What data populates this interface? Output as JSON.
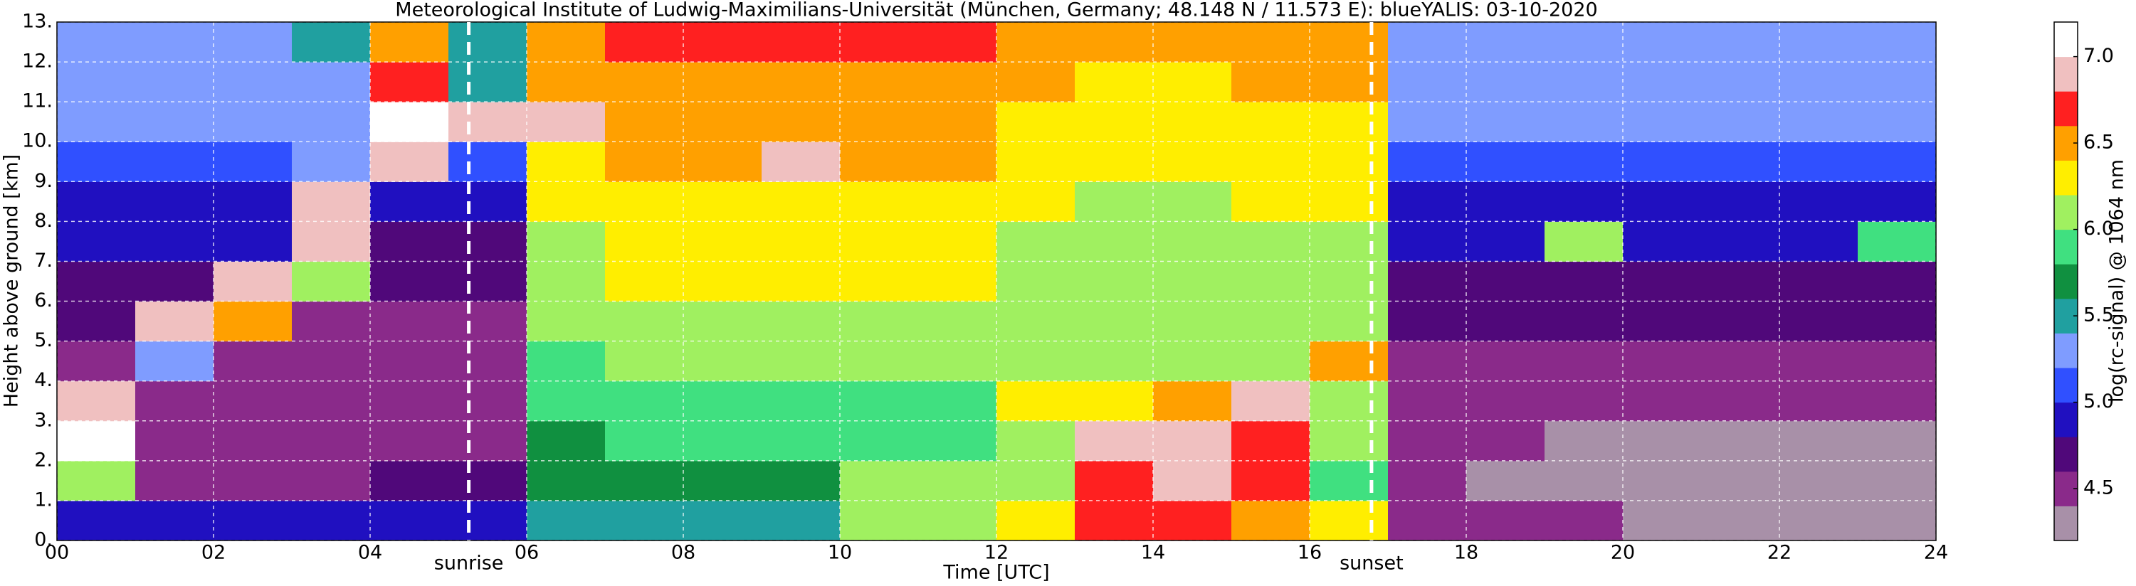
{
  "chart_data": {
    "type": "heatmap",
    "title": "Meteorological Institute of Ludwig-Maximilians-Universität (München, Germany; 48.148 N / 11.573 E):    blueYALIS: 03-10-2020",
    "x_label": "Time [UTC]",
    "y_label": "Height above ground [km]",
    "x_bins": [
      0,
      1,
      2,
      3,
      4,
      5,
      6,
      7,
      8,
      9,
      10,
      11,
      12,
      13,
      14,
      15,
      16,
      17,
      18,
      19,
      20,
      21,
      22,
      23,
      24
    ],
    "y_bins": [
      0,
      1,
      2,
      3,
      4,
      5,
      6,
      7,
      8,
      9,
      10,
      11,
      12,
      13
    ],
    "z": [
      [
        4.9,
        4.9,
        4.8,
        4.8,
        4.8,
        4.8,
        5.4,
        5.5,
        5.5,
        5.4,
        6.0,
        6.0,
        6.3,
        6.6,
        6.6,
        6.5,
        6.2,
        4.4,
        4.4,
        4.4,
        4.3,
        4.3,
        4.3,
        4.3
      ],
      [
        6.0,
        4.5,
        4.5,
        4.5,
        4.6,
        4.6,
        5.6,
        5.7,
        5.7,
        5.7,
        6.0,
        6.1,
        6.0,
        6.7,
        6.9,
        6.6,
        5.8,
        4.4,
        4.3,
        4.3,
        4.3,
        4.3,
        4.3,
        4.3
      ],
      [
        7.0,
        4.5,
        4.4,
        4.4,
        4.4,
        4.4,
        5.7,
        5.8,
        5.8,
        5.8,
        5.8,
        5.8,
        6.0,
        6.8,
        6.9,
        6.7,
        6.0,
        4.4,
        4.4,
        4.3,
        4.3,
        4.3,
        4.3,
        4.3
      ],
      [
        6.8,
        4.4,
        4.4,
        4.4,
        4.4,
        4.4,
        5.8,
        5.9,
        5.9,
        5.9,
        5.9,
        5.9,
        6.2,
        6.3,
        6.4,
        6.8,
        6.1,
        4.5,
        4.4,
        4.4,
        4.4,
        4.4,
        4.4,
        4.4
      ],
      [
        4.5,
        5.2,
        4.4,
        4.4,
        4.4,
        4.4,
        5.9,
        6.0,
        6.0,
        6.0,
        6.0,
        6.0,
        6.0,
        6.0,
        6.0,
        6.1,
        6.5,
        4.5,
        4.5,
        4.5,
        4.5,
        4.5,
        4.5,
        4.5
      ],
      [
        4.6,
        6.8,
        6.5,
        4.5,
        4.5,
        4.5,
        6.0,
        6.1,
        6.1,
        6.1,
        6.1,
        6.1,
        6.0,
        6.0,
        6.0,
        6.0,
        6.0,
        4.6,
        4.6,
        4.6,
        4.6,
        4.6,
        4.6,
        4.6
      ],
      [
        4.7,
        4.7,
        6.8,
        6.0,
        4.6,
        4.6,
        6.1,
        6.2,
        6.2,
        6.2,
        6.2,
        6.2,
        6.0,
        6.0,
        6.0,
        6.0,
        6.0,
        4.7,
        4.7,
        4.7,
        4.7,
        4.7,
        4.7,
        4.7
      ],
      [
        4.8,
        4.8,
        4.8,
        6.8,
        4.7,
        4.7,
        6.1,
        6.2,
        6.3,
        6.3,
        6.3,
        6.3,
        6.1,
        6.0,
        6.0,
        6.1,
        6.1,
        4.8,
        4.8,
        6.0,
        4.8,
        4.8,
        4.8,
        5.9
      ],
      [
        4.9,
        4.9,
        4.9,
        6.8,
        4.9,
        4.9,
        6.2,
        6.3,
        6.3,
        6.3,
        6.3,
        6.3,
        6.2,
        6.1,
        6.1,
        6.2,
        6.2,
        4.9,
        4.9,
        4.9,
        4.9,
        4.9,
        4.9,
        4.9
      ],
      [
        5.1,
        5.1,
        5.1,
        5.2,
        6.9,
        5.1,
        6.3,
        6.4,
        6.5,
        6.8,
        6.4,
        6.4,
        6.3,
        6.2,
        6.2,
        6.3,
        6.3,
        5.1,
        5.1,
        5.1,
        5.1,
        5.1,
        5.1,
        5.1
      ],
      [
        5.2,
        5.2,
        5.2,
        5.2,
        7.0,
        6.9,
        6.8,
        6.4,
        6.5,
        6.4,
        6.4,
        6.4,
        6.3,
        6.3,
        6.3,
        6.3,
        6.3,
        5.2,
        5.2,
        5.2,
        5.2,
        5.2,
        5.2,
        5.2
      ],
      [
        5.3,
        5.3,
        5.3,
        5.3,
        6.7,
        5.4,
        6.4,
        6.5,
        6.5,
        6.5,
        6.5,
        6.5,
        6.4,
        6.3,
        6.3,
        6.4,
        6.4,
        5.3,
        5.3,
        5.3,
        5.3,
        5.3,
        5.3,
        5.3
      ],
      [
        5.3,
        5.3,
        5.3,
        5.4,
        6.5,
        5.4,
        6.5,
        6.6,
        6.6,
        6.6,
        6.6,
        6.6,
        6.5,
        6.4,
        6.4,
        6.4,
        6.5,
        5.3,
        5.3,
        5.3,
        5.3,
        5.3,
        5.3,
        5.3
      ]
    ],
    "xlim": [
      0,
      24
    ],
    "ylim": [
      0,
      13
    ],
    "xticks": [
      {
        "value": 0,
        "label": "00"
      },
      {
        "value": 2,
        "label": "02"
      },
      {
        "value": 4,
        "label": "04"
      },
      {
        "value": 6,
        "label": "06"
      },
      {
        "value": 8,
        "label": "08"
      },
      {
        "value": 10,
        "label": "10"
      },
      {
        "value": 12,
        "label": "12"
      },
      {
        "value": 14,
        "label": "14"
      },
      {
        "value": 16,
        "label": "16"
      },
      {
        "value": 18,
        "label": "18"
      },
      {
        "value": 20,
        "label": "20"
      },
      {
        "value": 22,
        "label": "22"
      },
      {
        "value": 24,
        "label": "24"
      }
    ],
    "yticks": [
      {
        "value": 0,
        "label": "0."
      },
      {
        "value": 1,
        "label": "1."
      },
      {
        "value": 2,
        "label": "2."
      },
      {
        "value": 3,
        "label": "3."
      },
      {
        "value": 4,
        "label": "4."
      },
      {
        "value": 5,
        "label": "5."
      },
      {
        "value": 6,
        "label": "6."
      },
      {
        "value": 7,
        "label": "7."
      },
      {
        "value": 8,
        "label": "8."
      },
      {
        "value": 9,
        "label": "9."
      },
      {
        "value": 10,
        "label": "10."
      },
      {
        "value": 11,
        "label": "11."
      },
      {
        "value": 12,
        "label": "12."
      },
      {
        "value": 13,
        "label": "13."
      }
    ],
    "grid": true,
    "annotations": [
      {
        "text": "sunrise",
        "x": 5.26
      },
      {
        "text": "sunset",
        "x": 16.79
      }
    ],
    "colorbar": {
      "label": "log(rc-signal) @ 1064 nm",
      "lim": [
        4.2,
        7.2
      ],
      "bounds": [
        4.2,
        4.4,
        4.6,
        4.8,
        5.0,
        5.2,
        5.4,
        5.6,
        5.8,
        6.0,
        6.2,
        6.4,
        6.6,
        6.8,
        7.0,
        7.2
      ],
      "colors": [
        "#a890a8",
        "#8a2a8a",
        "#50087a",
        "#2010c0",
        "#3050ff",
        "#7f9cff",
        "#20a0a0",
        "#109040",
        "#40e080",
        "#a0f060",
        "#ffee00",
        "#ffa000",
        "#ff2020",
        "#f0c0c0",
        "#ffffff"
      ],
      "ticks": [
        4.5,
        {
          "value": 5,
          "label": "5.0"
        },
        5.5,
        {
          "value": 6,
          "label": "6.0"
        },
        6.5,
        {
          "value": 7,
          "label": "7.0"
        }
      ]
    }
  }
}
